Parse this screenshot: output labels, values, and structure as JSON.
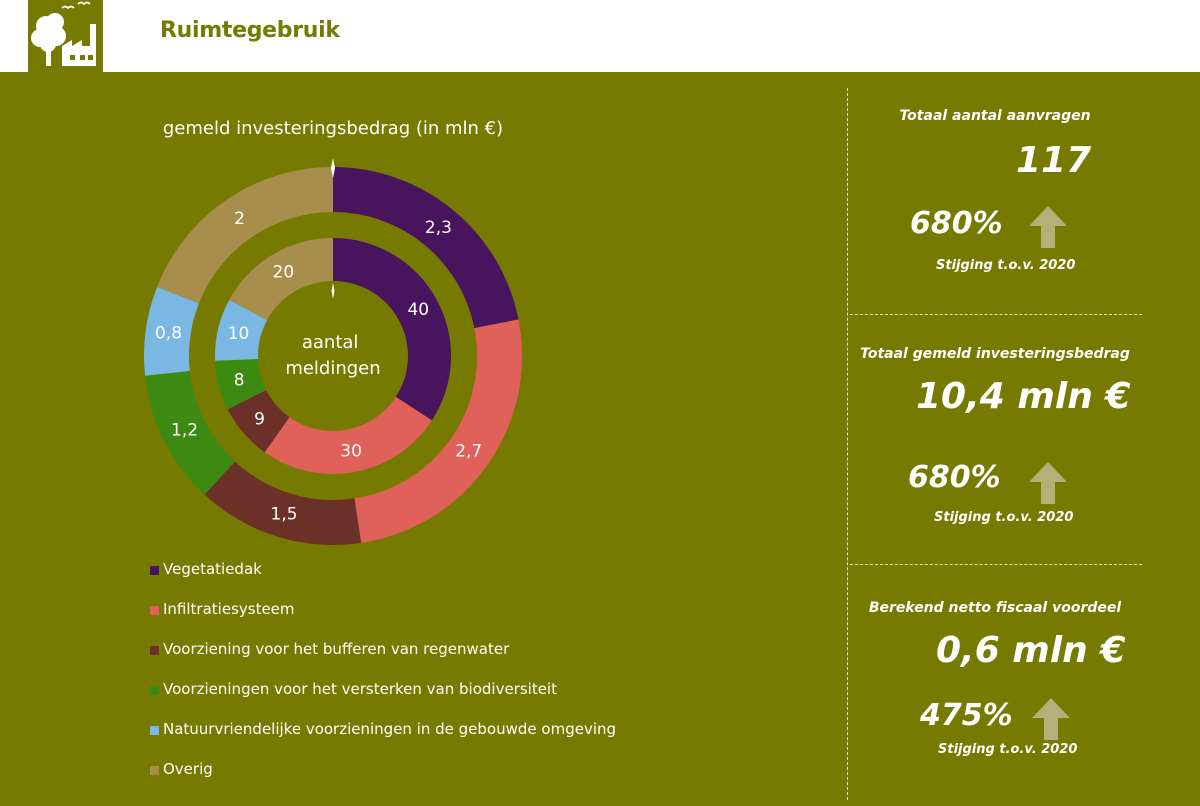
{
  "header": {
    "title": "Ruimtegebruik",
    "logo_icon": "tree-factory-icon"
  },
  "chart_data": {
    "type": "pie",
    "style": "nested-donut",
    "title": "gemeld investeringsbedrag (in mln €)",
    "center_label": "aantal meldingen",
    "categories": [
      "Vegetatiedak",
      "Infiltratiesysteem",
      "Voorziening voor het bufferen van regenwater",
      "Voorzieningen voor het versterken van biodiversiteit",
      "Natuurvriendelijke voorzieningen in de gebouwde omgeving",
      "Overig"
    ],
    "colors": [
      "#48145e",
      "#e0605a",
      "#6b3128",
      "#3d8a13",
      "#7ab7e2",
      "#a88e4c"
    ],
    "series": [
      {
        "name": "gemeld investeringsbedrag (in mln €)",
        "ring": "outer",
        "values": [
          2.3,
          2.7,
          1.5,
          1.2,
          0.8,
          2
        ],
        "labels": [
          "2,3",
          "2,7",
          "1,5",
          "1,2",
          "0,8",
          "2"
        ]
      },
      {
        "name": "aantal meldingen",
        "ring": "inner",
        "values": [
          40,
          30,
          9,
          8,
          10,
          20
        ],
        "labels": [
          "40",
          "30",
          "9",
          "8",
          "10",
          "20"
        ]
      }
    ],
    "legend_position": "bottom-left"
  },
  "stats": [
    {
      "label": "Totaal aantal aanvragen",
      "value": "117",
      "change": "680%",
      "change_note": "Stijging t.o.v. 2020",
      "arrow_icon": "arrow-up-icon"
    },
    {
      "label": "Totaal gemeld investeringsbedrag",
      "value": "10,4 mln €",
      "change": "680%",
      "change_note": "Stijging t.o.v. 2020",
      "arrow_icon": "arrow-up-icon"
    },
    {
      "label": "Berekend netto fiscaal voordeel",
      "value": "0,6 mln €",
      "change": "475%",
      "change_note": "Stijging t.o.v. 2020",
      "arrow_icon": "arrow-up-icon"
    }
  ],
  "theme": {
    "background": "#767a00",
    "header_background": "#ffffff",
    "arrow_color": "#b3b07a"
  }
}
